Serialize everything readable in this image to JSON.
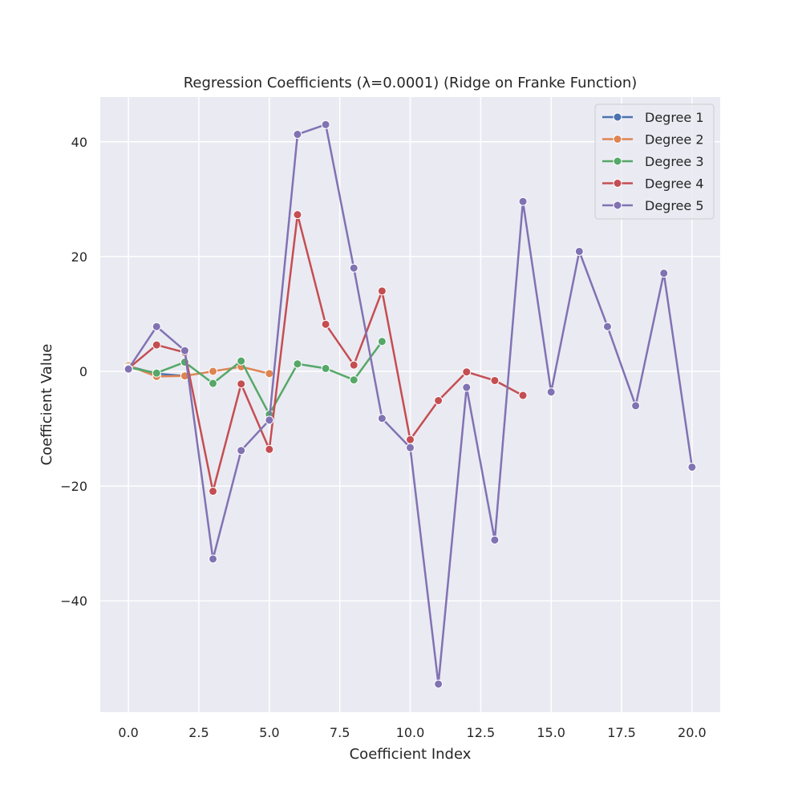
{
  "chart_data": {
    "type": "line",
    "title": "Regression Coefficients (λ=0.0001) (Ridge on Franke Function)",
    "xlabel": "Coefficient Index",
    "ylabel": "Coefficient Value",
    "xlim": [
      -1.0,
      21.0
    ],
    "ylim": [
      -59.4,
      47.8
    ],
    "xticks": [
      0.0,
      2.5,
      5.0,
      7.5,
      10.0,
      12.5,
      15.0,
      17.5,
      20.0
    ],
    "xtick_labels": [
      "0.0",
      "2.5",
      "5.0",
      "7.5",
      "10.0",
      "12.5",
      "15.0",
      "17.5",
      "20.0"
    ],
    "yticks": [
      40,
      20,
      0,
      -20,
      -40
    ],
    "ytick_labels": [
      "40",
      "20",
      "0",
      "−20",
      "−40"
    ],
    "grid": true,
    "legend_position": "top-right",
    "series": [
      {
        "name": "Degree 1",
        "color": "#4c72b0",
        "x": [
          0,
          1,
          2
        ],
        "y": [
          0.9,
          -0.4,
          -0.8
        ]
      },
      {
        "name": "Degree 2",
        "color": "#dd8452",
        "x": [
          0,
          1,
          2,
          3,
          4,
          5
        ],
        "y": [
          1.0,
          -0.9,
          -0.8,
          0.0,
          0.8,
          -0.4
        ]
      },
      {
        "name": "Degree 3",
        "color": "#55a868",
        "x": [
          0,
          1,
          2,
          3,
          4,
          5,
          6,
          7,
          8,
          9
        ],
        "y": [
          0.7,
          -0.3,
          1.6,
          -2.1,
          1.8,
          -7.5,
          1.3,
          0.5,
          -1.5,
          5.2
        ]
      },
      {
        "name": "Degree 4",
        "color": "#c44e52",
        "x": [
          0,
          1,
          2,
          3,
          4,
          5,
          6,
          7,
          8,
          9,
          10,
          11,
          12,
          13,
          14
        ],
        "y": [
          0.5,
          4.6,
          3.3,
          -20.9,
          -2.2,
          -13.6,
          27.3,
          8.2,
          1.1,
          14.0,
          -11.9,
          -5.1,
          -0.1,
          -1.6,
          -4.2
        ]
      },
      {
        "name": "Degree 5",
        "color": "#8172b3",
        "x": [
          0,
          1,
          2,
          3,
          4,
          5,
          6,
          7,
          8,
          9,
          10,
          11,
          12,
          13,
          14,
          15,
          16,
          17,
          18,
          19,
          20
        ],
        "y": [
          0.4,
          7.8,
          3.6,
          -32.7,
          -13.8,
          -8.5,
          41.3,
          43.0,
          18.0,
          -8.2,
          -13.3,
          -54.5,
          -2.8,
          -29.4,
          29.6,
          -3.6,
          20.9,
          7.8,
          -6.0,
          17.1,
          -16.7
        ]
      }
    ]
  }
}
